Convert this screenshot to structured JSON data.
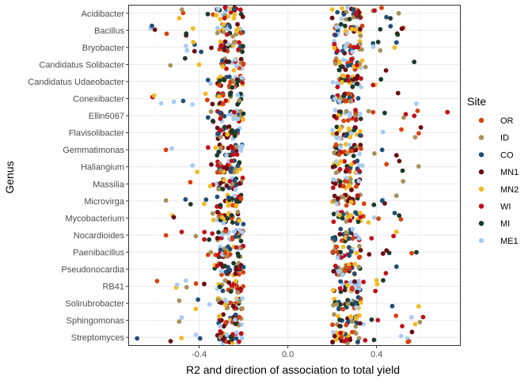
{
  "chart_data": {
    "type": "scatter",
    "xlabel": "R2 and direction of association to total yield",
    "ylabel": "Genus",
    "xlim": [
      -0.72,
      0.78
    ],
    "x_ticks": [
      -0.4,
      0.0,
      0.4
    ],
    "x_tick_labels": [
      "-0.4",
      "0.0",
      "0.4"
    ],
    "grid": true,
    "legend_title": "Site",
    "legend_placement": "right",
    "categories": [
      "Acidibacter",
      "Bacillus",
      "Bryobacter",
      "Candidatus Solibacter",
      "Candidatus Udaeobacter",
      "Conexibacter",
      "Ellin6067",
      "Flavisolibacter",
      "Gemmatimonas",
      "Haliangium",
      "Massilia",
      "Microvirga",
      "Mycobacterium",
      "Nocardioides",
      "Paenibacillus",
      "Pseudonocardia",
      "RB41",
      "Solirubrobacter",
      "Sphingomonas",
      "Streptomyces"
    ],
    "series": [
      {
        "name": "OR",
        "color": "#D9400F"
      },
      {
        "name": "ID",
        "color": "#A8915A"
      },
      {
        "name": "CO",
        "color": "#1F4E79"
      },
      {
        "name": "MN1",
        "color": "#6B0A12"
      },
      {
        "name": "MN2",
        "color": "#F5B921"
      },
      {
        "name": "WI",
        "color": "#C00F1A"
      },
      {
        "name": "MI",
        "color": "#1B3A2A"
      },
      {
        "name": "ME1",
        "color": "#A7CCF2"
      }
    ],
    "ranges": {
      "Acidibacter": {
        "neg": [
          -0.49,
          -0.2
        ],
        "pos": [
          0.2,
          0.5
        ]
      },
      "Bacillus": {
        "neg": [
          -0.62,
          -0.2
        ],
        "pos": [
          0.2,
          0.52
        ]
      },
      "Bryobacter": {
        "neg": [
          -0.46,
          -0.2
        ],
        "pos": [
          0.2,
          0.49
        ]
      },
      "Candidatus Solibacter": {
        "neg": [
          -0.53,
          -0.2
        ],
        "pos": [
          0.2,
          0.57
        ]
      },
      "Candidatus Udaeobacter": {
        "neg": [
          -0.36,
          -0.2
        ],
        "pos": [
          0.2,
          0.42
        ]
      },
      "Conexibacter": {
        "neg": [
          -0.61,
          -0.2
        ],
        "pos": [
          0.2,
          0.58
        ]
      },
      "Ellin6067": {
        "neg": [
          -0.36,
          -0.2
        ],
        "pos": [
          0.2,
          0.72
        ]
      },
      "Flavisolibacter": {
        "neg": [
          -0.32,
          -0.2
        ],
        "pos": [
          0.2,
          0.6
        ]
      },
      "Gemmatimonas": {
        "neg": [
          -0.55,
          -0.2
        ],
        "pos": [
          0.2,
          0.49
        ]
      },
      "Haliangium": {
        "neg": [
          -0.43,
          -0.2
        ],
        "pos": [
          0.2,
          0.59
        ]
      },
      "Massilia": {
        "neg": [
          -0.44,
          -0.2
        ],
        "pos": [
          0.2,
          0.52
        ]
      },
      "Microvirga": {
        "neg": [
          -0.55,
          -0.2
        ],
        "pos": [
          0.2,
          0.49
        ]
      },
      "Mycobacterium": {
        "neg": [
          -0.52,
          -0.2
        ],
        "pos": [
          0.2,
          0.51
        ]
      },
      "Nocardioides": {
        "neg": [
          -0.55,
          -0.2
        ],
        "pos": [
          0.2,
          0.49
        ]
      },
      "Paenibacillus": {
        "neg": [
          -0.36,
          -0.2
        ],
        "pos": [
          0.2,
          0.58
        ]
      },
      "Pseudonocardia": {
        "neg": [
          -0.33,
          -0.2
        ],
        "pos": [
          0.2,
          0.49
        ]
      },
      "RB41": {
        "neg": [
          -0.59,
          -0.2
        ],
        "pos": [
          0.2,
          0.43
        ]
      },
      "Solirubrobacter": {
        "neg": [
          -0.49,
          -0.2
        ],
        "pos": [
          0.2,
          0.59
        ]
      },
      "Sphingomonas": {
        "neg": [
          -0.49,
          -0.2
        ],
        "pos": [
          0.2,
          0.61
        ]
      },
      "Streptomyces": {
        "neg": [
          -0.68,
          -0.2
        ],
        "pos": [
          0.2,
          0.56
        ]
      }
    },
    "points_per_side": 34
  }
}
